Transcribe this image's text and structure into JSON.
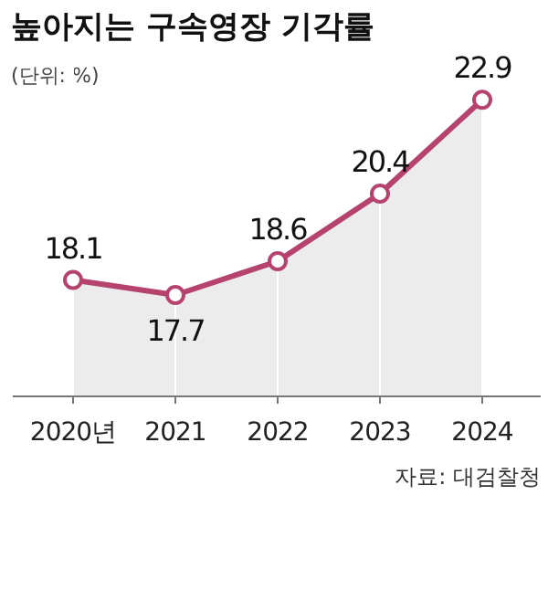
{
  "chart_data": {
    "type": "area",
    "title": "높아지는 구속영장 기각률",
    "subtitle": "(단위: %)",
    "annotations": [
      "자료: 대검찰청"
    ],
    "categories": [
      "2020년",
      "2021",
      "2022",
      "2023",
      "2024"
    ],
    "series": [
      {
        "color": "#b5436e",
        "values": [
          18.1,
          17.7,
          18.6,
          20.4,
          22.9
        ]
      }
    ],
    "ylim": [
      15,
      24
    ],
    "marker": "circle",
    "data_labels": true,
    "grid": "x"
  }
}
